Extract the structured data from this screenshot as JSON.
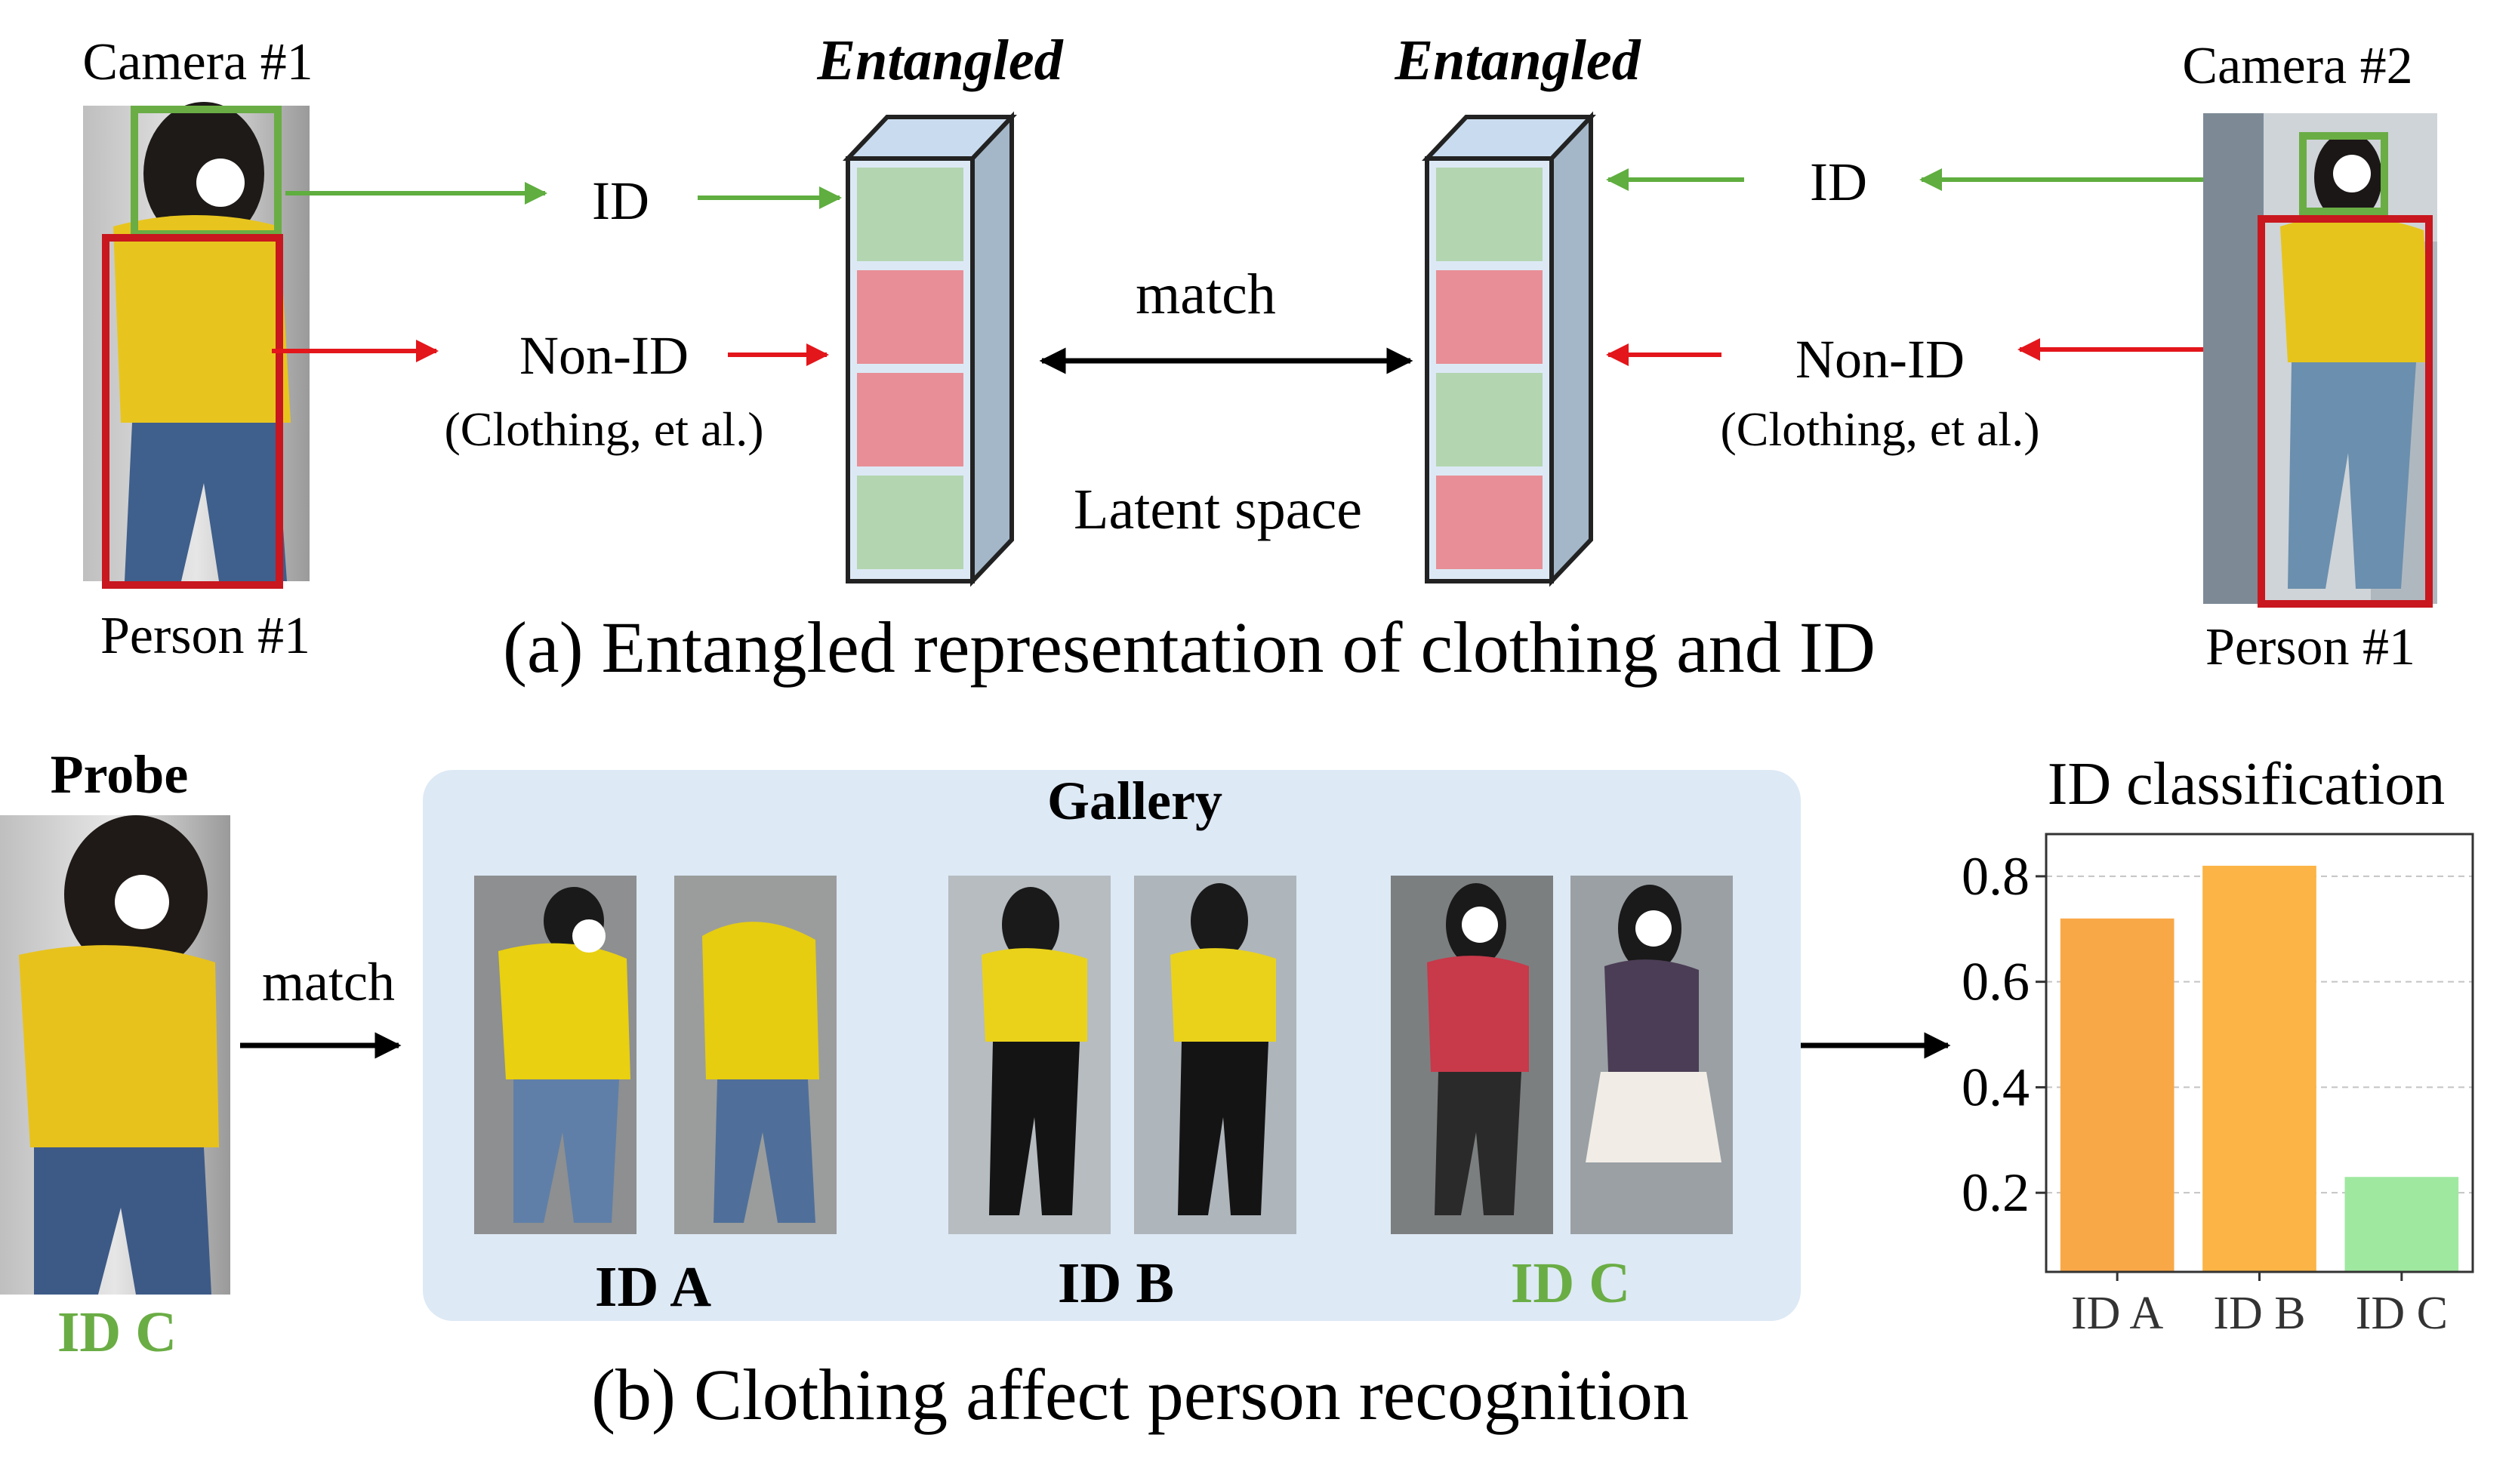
{
  "colors": {
    "green": "#6aad45",
    "red": "#c8171e",
    "arrow_green": "#5fae3f",
    "arrow_red": "#e3161b",
    "cell_green": "#b3d5b0",
    "cell_red": "#e88e96",
    "box_face": "#dce9f5",
    "box_side": "#a3b7c8",
    "box_top": "#c9dcef",
    "gallery_bg": "#dde9f5",
    "bar_orange": "#f9a847",
    "bar_orange2": "#fbb445",
    "bar_green": "#9fe8a0",
    "id_c_text": "#6aad45"
  },
  "part_a": {
    "camera1": "Camera #1",
    "camera2": "Camera #2",
    "person_left": "Person #1",
    "person_right": "Person #1",
    "entangled_left": "Entangled",
    "entangled_right": "Entangled",
    "id_left": "ID",
    "id_right": "ID",
    "nonid_left": "Non-ID",
    "nonid_right": "Non-ID",
    "clothing_left": "(Clothing, et al.)",
    "clothing_right": "(Clothing, et al.)",
    "match": "match",
    "latent": "Latent space",
    "caption": "(a) Entangled representation of clothing and ID",
    "left_cells": [
      "green",
      "red",
      "red",
      "green"
    ],
    "right_cells": [
      "green",
      "red",
      "green",
      "red"
    ]
  },
  "part_b": {
    "probe": "Probe",
    "probe_id": "ID C",
    "match": "match",
    "gallery": "Gallery",
    "groups": [
      {
        "label": "ID A"
      },
      {
        "label": "ID B"
      },
      {
        "label": "ID C"
      }
    ],
    "caption": "(b) Clothing affect person recognition"
  },
  "chart_data": {
    "type": "bar",
    "title": "ID classification",
    "categories": [
      "ID A",
      "ID B",
      "ID C"
    ],
    "values": [
      0.72,
      0.82,
      0.23
    ],
    "yticks": [
      "0.2",
      "0.4",
      "0.6",
      "0.8"
    ],
    "ylim": [
      0.05,
      0.88
    ],
    "grid": true,
    "colors": [
      "#f9a847",
      "#fbb445",
      "#9fe8a0"
    ]
  }
}
